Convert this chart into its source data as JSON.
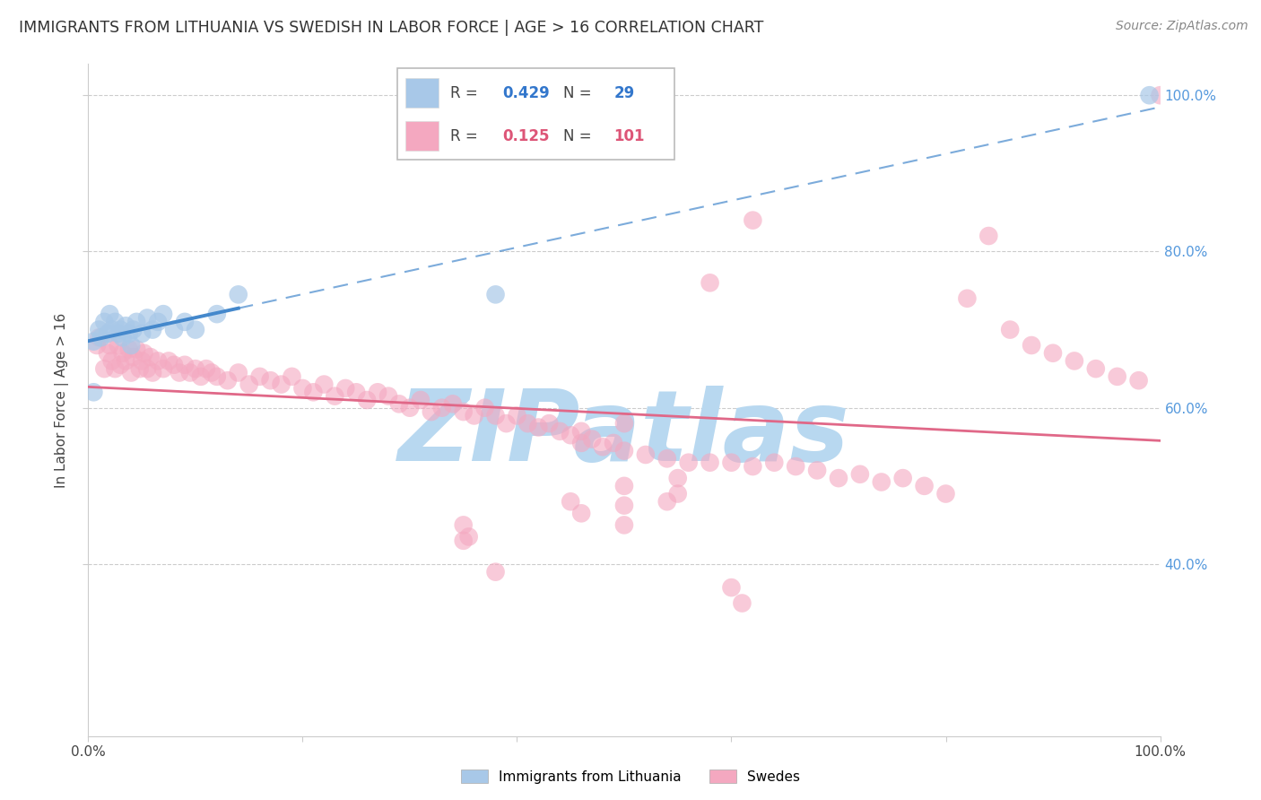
{
  "title": "IMMIGRANTS FROM LITHUANIA VS SWEDISH IN LABOR FORCE | AGE > 16 CORRELATION CHART",
  "source": "Source: ZipAtlas.com",
  "ylabel": "In Labor Force | Age > 16",
  "xlim": [
    0.0,
    1.0
  ],
  "ylim": [
    0.18,
    1.04
  ],
  "right_yticks": [
    0.4,
    0.6,
    0.8,
    1.0
  ],
  "right_yticklabels": [
    "40.0%",
    "60.0%",
    "80.0%",
    "100.0%"
  ],
  "xtick_positions": [
    0.0,
    1.0
  ],
  "xticklabels": [
    "0.0%",
    "100.0%"
  ],
  "blue_scatter_color": "#a8c8e8",
  "pink_scatter_color": "#f4a8c0",
  "blue_line_color": "#4488cc",
  "pink_line_color": "#e06888",
  "grid_color": "#cccccc",
  "watermark": "ZIPatlas",
  "watermark_color": "#b8d8f0",
  "legend_R_blue": "0.429",
  "legend_N_blue": "29",
  "legend_R_pink": "0.125",
  "legend_N_pink": "101",
  "legend_label_blue": "Immigrants from Lithuania",
  "legend_label_pink": "Swedes",
  "blue_x": [
    0.005,
    0.01,
    0.012,
    0.015,
    0.018,
    0.02,
    0.022,
    0.025,
    0.028,
    0.03,
    0.032,
    0.035,
    0.038,
    0.04,
    0.042,
    0.045,
    0.05,
    0.055,
    0.06,
    0.065,
    0.07,
    0.08,
    0.09,
    0.1,
    0.12,
    0.14,
    0.005,
    0.38,
    0.99
  ],
  "blue_y": [
    0.685,
    0.7,
    0.69,
    0.71,
    0.695,
    0.72,
    0.7,
    0.71,
    0.695,
    0.7,
    0.69,
    0.705,
    0.695,
    0.68,
    0.7,
    0.71,
    0.695,
    0.715,
    0.7,
    0.71,
    0.72,
    0.7,
    0.71,
    0.7,
    0.72,
    0.745,
    0.62,
    0.745,
    1.0
  ],
  "pink_x": [
    0.008,
    0.01,
    0.015,
    0.018,
    0.02,
    0.022,
    0.025,
    0.028,
    0.03,
    0.032,
    0.035,
    0.038,
    0.04,
    0.042,
    0.045,
    0.048,
    0.05,
    0.052,
    0.055,
    0.058,
    0.06,
    0.065,
    0.07,
    0.075,
    0.08,
    0.085,
    0.09,
    0.095,
    0.1,
    0.105,
    0.11,
    0.115,
    0.12,
    0.13,
    0.14,
    0.15,
    0.16,
    0.17,
    0.18,
    0.19,
    0.2,
    0.21,
    0.22,
    0.23,
    0.24,
    0.25,
    0.26,
    0.27,
    0.28,
    0.29,
    0.3,
    0.31,
    0.32,
    0.33,
    0.34,
    0.35,
    0.36,
    0.37,
    0.38,
    0.39,
    0.4,
    0.41,
    0.42,
    0.43,
    0.44,
    0.45,
    0.46,
    0.47,
    0.48,
    0.49,
    0.5,
    0.52,
    0.54,
    0.56,
    0.58,
    0.6,
    0.62,
    0.64,
    0.66,
    0.68,
    0.7,
    0.72,
    0.74,
    0.76,
    0.78,
    0.8,
    0.82,
    0.84,
    0.86,
    0.88,
    0.9,
    0.92,
    0.94,
    0.96,
    0.98,
    0.62,
    0.58,
    0.5,
    0.46,
    0.35,
    1.0
  ],
  "pink_y": [
    0.68,
    0.69,
    0.65,
    0.67,
    0.68,
    0.66,
    0.65,
    0.68,
    0.655,
    0.67,
    0.66,
    0.675,
    0.645,
    0.665,
    0.675,
    0.65,
    0.66,
    0.67,
    0.65,
    0.665,
    0.645,
    0.66,
    0.65,
    0.66,
    0.655,
    0.645,
    0.655,
    0.645,
    0.65,
    0.64,
    0.65,
    0.645,
    0.64,
    0.635,
    0.645,
    0.63,
    0.64,
    0.635,
    0.63,
    0.64,
    0.625,
    0.62,
    0.63,
    0.615,
    0.625,
    0.62,
    0.61,
    0.62,
    0.615,
    0.605,
    0.6,
    0.61,
    0.595,
    0.6,
    0.605,
    0.595,
    0.59,
    0.6,
    0.59,
    0.58,
    0.59,
    0.58,
    0.575,
    0.58,
    0.57,
    0.565,
    0.555,
    0.56,
    0.55,
    0.555,
    0.545,
    0.54,
    0.535,
    0.53,
    0.53,
    0.53,
    0.525,
    0.53,
    0.525,
    0.52,
    0.51,
    0.515,
    0.505,
    0.51,
    0.5,
    0.49,
    0.74,
    0.82,
    0.7,
    0.68,
    0.67,
    0.66,
    0.65,
    0.64,
    0.635,
    0.84,
    0.76,
    0.58,
    0.57,
    0.45,
    1.0
  ],
  "extra_pink_x": [
    0.35,
    0.38,
    0.45,
    0.5,
    0.55,
    0.5,
    0.55,
    0.61,
    0.6,
    0.355,
    0.46,
    0.5,
    0.54
  ],
  "extra_pink_y": [
    0.43,
    0.39,
    0.48,
    0.5,
    0.49,
    0.45,
    0.51,
    0.35,
    0.37,
    0.435,
    0.465,
    0.475,
    0.48
  ]
}
